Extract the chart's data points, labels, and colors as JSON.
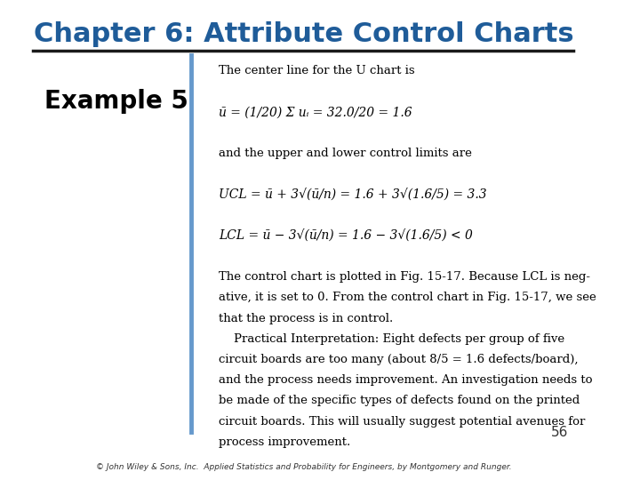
{
  "title": "Chapter 6: Attribute Control Charts",
  "title_color": "#1F5C99",
  "title_fontsize": 22,
  "example_label": "Example 5",
  "example_fontsize": 20,
  "page_number": "56",
  "footer": "© John Wiley & Sons, Inc.  Applied Statistics and Probability for Engineers, by Montgomery and Runger.",
  "bg_color": "#FFFFFF",
  "divider_color": "#1a1a1a",
  "sidebar_color": "#6699CC",
  "content_lines": [
    "The center line for the U chart is",
    "",
    "    ū = (1/20) Σ uᵢ = 32.0/20 = 1.6",
    "",
    "and the upper and lower control limits are",
    "",
    "    UCL = ū + 3√(ū/n) = 1.6 + 3√(1.6/5) = 3.3",
    "",
    "    LCL = ū − 3√(ū/n) = 1.6 − 3√(1.6/5) < 0",
    "",
    "The control chart is plotted in Fig. 15-17. Because LCL is neg-",
    "ative, it is set to 0. From the control chart in Fig. 15-17, we see",
    "that the process is in control.",
    "    Practical Interpretation: Eight defects per group of five",
    "circuit boards are too many (about 8/5 = 1.6 defects/board),",
    "and the process needs improvement. An investigation needs to",
    "be made of the specific types of defects found on the printed",
    "circuit boards. This will usually suggest potential avenues for",
    "process improvement."
  ],
  "content_fontsize": 9.5
}
